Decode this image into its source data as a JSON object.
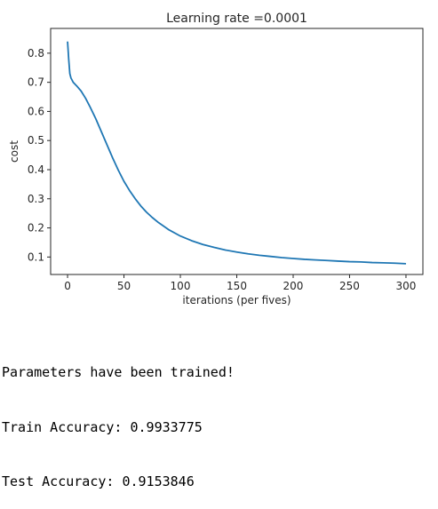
{
  "chart_data": {
    "type": "line",
    "title": "Learning rate =0.0001",
    "xlabel": "iterations (per fives)",
    "ylabel": "cost",
    "xlim": [
      -15,
      315
    ],
    "ylim": [
      0.04,
      0.885
    ],
    "xticks": [
      0,
      50,
      100,
      150,
      200,
      250,
      300
    ],
    "yticks": [
      0.1,
      0.2,
      0.3,
      0.4,
      0.5,
      0.6,
      0.7,
      0.8
    ],
    "ytick_labels": [
      "0.1",
      "0.2",
      "0.3",
      "0.4",
      "0.5",
      "0.6",
      "0.7",
      "0.8"
    ],
    "grid": false,
    "color": "#1f77b4",
    "series": [
      {
        "x": [
          0,
          1,
          2,
          3,
          5,
          8,
          12,
          16,
          20,
          25,
          30,
          35,
          40,
          45,
          50,
          55,
          60,
          65,
          70,
          75,
          80,
          90,
          100,
          110,
          120,
          130,
          140,
          150,
          160,
          170,
          180,
          190,
          200,
          210,
          220,
          230,
          240,
          250,
          260,
          270,
          280,
          290,
          300
        ],
        "y": [
          0.84,
          0.78,
          0.73,
          0.715,
          0.7,
          0.688,
          0.67,
          0.645,
          0.615,
          0.575,
          0.53,
          0.485,
          0.44,
          0.398,
          0.36,
          0.328,
          0.3,
          0.275,
          0.254,
          0.236,
          0.22,
          0.193,
          0.172,
          0.156,
          0.143,
          0.133,
          0.124,
          0.117,
          0.111,
          0.106,
          0.102,
          0.098,
          0.095,
          0.092,
          0.09,
          0.088,
          0.086,
          0.084,
          0.083,
          0.081,
          0.08,
          0.079,
          0.077
        ]
      }
    ]
  },
  "output": {
    "line1": "Parameters have been trained!",
    "line2": "Train Accuracy: 0.9933775",
    "line3": "Test Accuracy: 0.9153846"
  }
}
